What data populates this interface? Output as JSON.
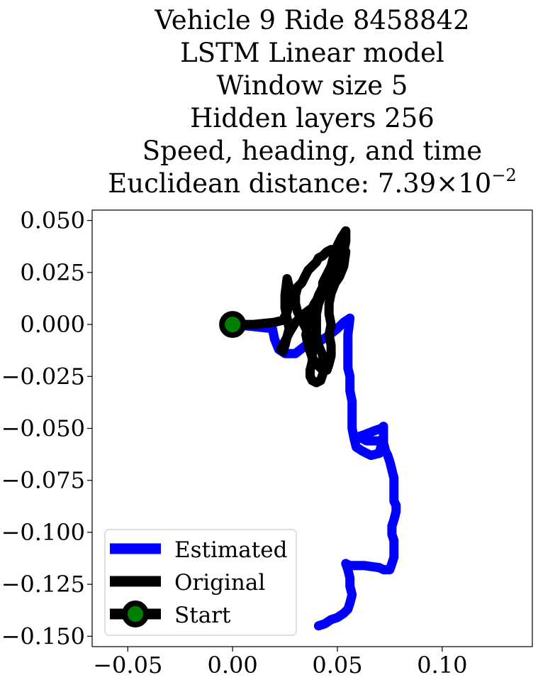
{
  "chart_data": {
    "type": "line",
    "title_lines": [
      "Vehicle 9 Ride 8458842",
      "LSTM Linear model",
      "Window size 5",
      "Hidden layers 256",
      "Speed, heading, and time"
    ],
    "distance_label": "Euclidean distance: ",
    "distance_mantissa": "7.39",
    "distance_times": "×",
    "distance_base": "10",
    "distance_exponent": "−2",
    "xlim": [
      -0.067,
      0.143
    ],
    "ylim": [
      -0.155,
      0.055
    ],
    "xticks": [
      -0.05,
      0.0,
      0.05,
      0.1
    ],
    "xtick_labels": [
      "−0.05",
      "0.00",
      "0.05",
      "0.10"
    ],
    "yticks": [
      0.05,
      0.025,
      0.0,
      -0.025,
      -0.05,
      -0.075,
      -0.1,
      -0.125,
      -0.15
    ],
    "ytick_labels": [
      "0.050",
      "0.025",
      "0.000",
      "−0.025",
      "−0.050",
      "−0.075",
      "−0.100",
      "−0.125",
      "−0.150"
    ],
    "legend_position": "lower-left",
    "series": [
      {
        "name": "Estimated",
        "color": "#0000ff",
        "x": [
          0.0,
          0.01,
          0.019,
          0.02,
          0.022,
          0.025,
          0.03,
          0.035,
          0.04,
          0.045,
          0.05,
          0.053,
          0.056,
          0.055,
          0.055,
          0.055,
          0.056,
          0.056,
          0.057,
          0.057,
          0.057,
          0.057,
          0.058,
          0.059,
          0.062,
          0.066,
          0.07,
          0.071,
          0.07,
          0.064,
          0.06,
          0.063,
          0.068,
          0.071,
          0.072,
          0.072,
          0.073,
          0.074,
          0.074,
          0.075,
          0.076,
          0.077,
          0.077,
          0.077,
          0.078,
          0.078,
          0.077,
          0.076,
          0.076,
          0.077,
          0.077,
          0.077,
          0.076,
          0.075,
          0.072,
          0.07,
          0.063,
          0.056,
          0.054,
          0.055,
          0.056,
          0.056,
          0.057,
          0.056,
          0.055,
          0.053,
          0.05,
          0.047,
          0.044,
          0.041
        ],
        "y": [
          0.0,
          -0.001,
          -0.002,
          -0.007,
          -0.012,
          -0.014,
          -0.014,
          -0.01,
          -0.009,
          -0.006,
          -0.002,
          0.001,
          0.003,
          -0.005,
          -0.015,
          -0.021,
          -0.025,
          -0.032,
          -0.037,
          -0.042,
          -0.046,
          -0.05,
          -0.055,
          -0.059,
          -0.061,
          -0.063,
          -0.062,
          -0.058,
          -0.056,
          -0.056,
          -0.054,
          -0.053,
          -0.051,
          -0.05,
          -0.049,
          -0.057,
          -0.061,
          -0.063,
          -0.063,
          -0.066,
          -0.07,
          -0.074,
          -0.08,
          -0.085,
          -0.087,
          -0.09,
          -0.094,
          -0.097,
          -0.101,
          -0.104,
          -0.109,
          -0.112,
          -0.115,
          -0.118,
          -0.118,
          -0.117,
          -0.116,
          -0.116,
          -0.115,
          -0.118,
          -0.122,
          -0.126,
          -0.13,
          -0.134,
          -0.137,
          -0.139,
          -0.141,
          -0.142,
          -0.144,
          -0.145
        ]
      },
      {
        "name": "Original",
        "color": "#000000",
        "x": [
          0.0,
          0.01,
          0.02,
          0.024,
          0.026,
          0.027,
          0.028,
          0.027,
          0.026,
          0.025,
          0.025,
          0.026,
          0.027,
          0.026,
          0.025,
          0.024,
          0.023,
          0.025,
          0.027,
          0.03,
          0.034,
          0.038,
          0.04,
          0.041,
          0.042,
          0.043,
          0.044,
          0.045,
          0.046,
          0.047,
          0.048,
          0.049,
          0.05,
          0.052,
          0.054,
          0.054,
          0.053,
          0.052,
          0.051,
          0.052,
          0.053,
          0.054,
          0.053,
          0.051,
          0.049,
          0.047,
          0.046,
          0.046,
          0.047,
          0.046,
          0.047,
          0.047,
          0.046,
          0.045,
          0.043,
          0.041,
          0.038,
          0.036,
          0.035,
          0.036,
          0.037,
          0.038,
          0.039,
          0.041,
          0.042,
          0.043,
          0.043,
          0.044,
          0.045,
          0.046,
          0.047,
          0.048,
          0.049,
          0.05,
          0.051,
          0.049,
          0.047,
          0.045,
          0.043,
          0.041,
          0.04,
          0.04,
          0.04,
          0.041,
          0.043,
          0.044,
          0.043,
          0.042,
          0.04,
          0.038,
          0.037,
          0.037,
          0.038,
          0.038,
          0.038,
          0.037,
          0.035,
          0.033,
          0.031,
          0.03,
          0.03,
          0.031,
          0.033,
          0.034,
          0.035,
          0.036,
          0.038,
          0.04,
          0.041,
          0.043,
          0.044,
          0.045,
          0.047,
          0.048,
          0.05
        ],
        "y": [
          0.0,
          0.0,
          0.001,
          0.002,
          0.006,
          0.01,
          0.014,
          0.018,
          0.022,
          0.014,
          0.008,
          0.003,
          -0.002,
          -0.006,
          -0.01,
          -0.013,
          -0.012,
          -0.008,
          -0.004,
          0.001,
          0.005,
          0.008,
          0.011,
          0.014,
          0.016,
          0.018,
          0.02,
          0.022,
          0.025,
          0.028,
          0.032,
          0.034,
          0.038,
          0.042,
          0.045,
          0.04,
          0.035,
          0.03,
          0.025,
          0.028,
          0.032,
          0.035,
          0.028,
          0.023,
          0.02,
          0.015,
          0.01,
          0.005,
          0.0,
          -0.005,
          -0.01,
          -0.015,
          -0.019,
          -0.022,
          -0.022,
          -0.02,
          -0.016,
          -0.01,
          -0.005,
          0.0,
          0.005,
          0.008,
          0.01,
          0.013,
          0.015,
          0.017,
          0.02,
          0.022,
          0.024,
          0.026,
          0.028,
          0.03,
          0.032,
          0.034,
          0.036,
          0.03,
          0.025,
          0.02,
          0.015,
          0.01,
          0.005,
          0.0,
          -0.005,
          -0.01,
          -0.015,
          -0.02,
          -0.024,
          -0.027,
          -0.028,
          -0.027,
          -0.025,
          -0.022,
          -0.018,
          -0.014,
          -0.01,
          -0.006,
          -0.002,
          0.002,
          0.006,
          0.01,
          0.014,
          0.018,
          0.02,
          0.022,
          0.024,
          0.026,
          0.028,
          0.03,
          0.032,
          0.033,
          0.034,
          0.035,
          0.036,
          0.035,
          0.034
        ]
      }
    ],
    "start": {
      "name": "Start",
      "x": 0.0,
      "y": 0.0,
      "line_color": "#000000",
      "marker_fill": "#008000"
    }
  }
}
